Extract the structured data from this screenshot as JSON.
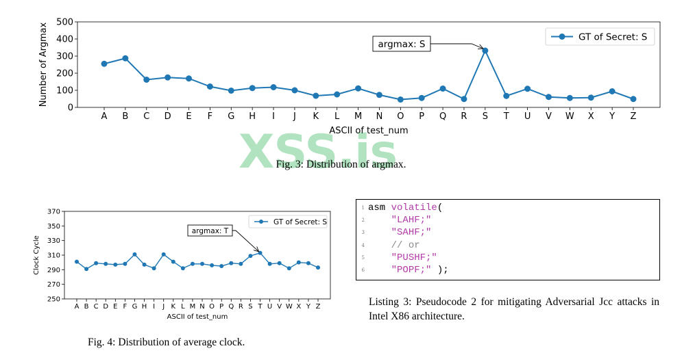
{
  "watermark": "XSS.is",
  "fig3": {
    "caption": "Fig. 3: Distribution of argmax.",
    "chart_data": {
      "type": "line",
      "categories": [
        "A",
        "B",
        "C",
        "D",
        "E",
        "F",
        "G",
        "H",
        "I",
        "J",
        "K",
        "L",
        "M",
        "N",
        "O",
        "P",
        "Q",
        "R",
        "S",
        "T",
        "U",
        "V",
        "W",
        "X",
        "Y",
        "Z"
      ],
      "series": [
        {
          "name": "GT of Secret: S",
          "values": [
            255,
            287,
            162,
            175,
            169,
            122,
            98,
            113,
            118,
            100,
            68,
            76,
            111,
            73,
            46,
            55,
            110,
            49,
            332,
            67,
            109,
            61,
            55,
            57,
            94,
            49
          ]
        }
      ],
      "xlabel": "ASCII of test_num",
      "ylabel": "Number of Argmax",
      "ylim": [
        0,
        500
      ],
      "yticks": [
        0,
        100,
        200,
        300,
        400,
        500
      ],
      "legend": "top-right",
      "annotation": {
        "text": "argmax: S",
        "category": "S"
      },
      "color": "#1f77b4"
    }
  },
  "fig4": {
    "caption": "Fig. 4: Distribution of average clock.",
    "chart_data": {
      "type": "line",
      "categories": [
        "A",
        "B",
        "C",
        "D",
        "E",
        "F",
        "G",
        "H",
        "I",
        "J",
        "K",
        "L",
        "M",
        "N",
        "O",
        "P",
        "Q",
        "R",
        "S",
        "T",
        "U",
        "V",
        "W",
        "X",
        "Y",
        "Z"
      ],
      "series": [
        {
          "name": "GT of Secret: S",
          "values": [
            301,
            291,
            299,
            298,
            297,
            298,
            311,
            297,
            292,
            311,
            301,
            292,
            298,
            298,
            296,
            295,
            299,
            298,
            309,
            313,
            298,
            299,
            292,
            300,
            299,
            293
          ]
        }
      ],
      "xlabel": "ASCII of test_num",
      "ylabel": "Clock Cycle",
      "ylim": [
        250,
        370
      ],
      "yticks": [
        250,
        270,
        290,
        310,
        330,
        350,
        370
      ],
      "legend": "top-right",
      "annotation": {
        "text": "argmax: T",
        "category": "T"
      },
      "color": "#1f77b4"
    }
  },
  "listing": {
    "lines": [
      {
        "no": "1",
        "parts": [
          {
            "t": "asm ",
            "c": "kw"
          },
          {
            "t": "volatile",
            "c": "fn"
          },
          {
            "t": "(",
            "c": "kw"
          }
        ]
      },
      {
        "no": "2",
        "parts": [
          {
            "t": "    ",
            "c": "kw"
          },
          {
            "t": "\"LAHF;\"",
            "c": "str"
          }
        ]
      },
      {
        "no": "3",
        "parts": [
          {
            "t": "    ",
            "c": "kw"
          },
          {
            "t": "\"SAHF;\"",
            "c": "str"
          }
        ]
      },
      {
        "no": "4",
        "parts": [
          {
            "t": "    ",
            "c": "kw"
          },
          {
            "t": "// or",
            "c": "cm"
          }
        ]
      },
      {
        "no": "5",
        "parts": [
          {
            "t": "    ",
            "c": "kw"
          },
          {
            "t": "\"PUSHF;\"",
            "c": "str"
          }
        ]
      },
      {
        "no": "6",
        "parts": [
          {
            "t": "    ",
            "c": "kw"
          },
          {
            "t": "\"POPF;\"",
            "c": "str"
          },
          {
            "t": " );",
            "c": "kw"
          }
        ]
      }
    ],
    "caption": "Listing 3: Pseudocode 2 for mitigating Adversarial Jcc attacks in Intel X86 architecture."
  }
}
